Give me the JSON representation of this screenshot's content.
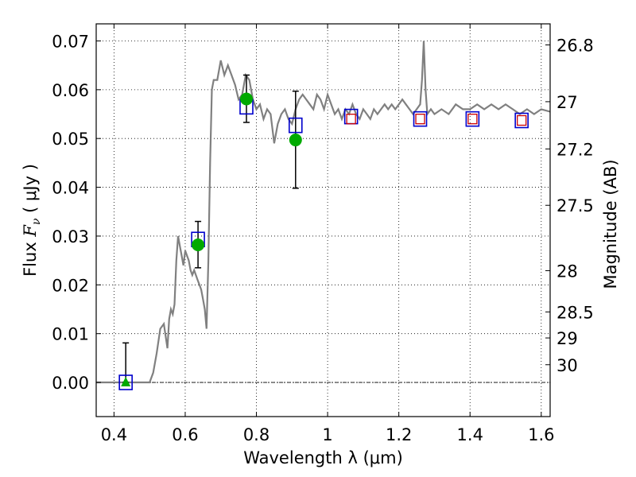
{
  "chart_data": {
    "type": "scatter",
    "xlabel": "Wavelength  λ (μm)",
    "ylabel_prefix": "Flux  ",
    "ylabel_symbol": "F",
    "ylabel_sub": "ν",
    "ylabel_suffix": "  ( μJy )",
    "ylabel_right": "Magnitude (AB)",
    "xlim": [
      0.35,
      1.625
    ],
    "ylim": [
      -0.007,
      0.0735
    ],
    "x_ticks": [
      {
        "value": 0.4,
        "label": "0.4"
      },
      {
        "value": 0.6,
        "label": "0.6"
      },
      {
        "value": 0.8,
        "label": "0.8"
      },
      {
        "value": 1.0,
        "label": "1"
      },
      {
        "value": 1.2,
        "label": "1.2"
      },
      {
        "value": 1.4,
        "label": "1.4"
      },
      {
        "value": 1.6,
        "label": "1.6"
      }
    ],
    "y_ticks": [
      {
        "value": 0.0,
        "label": "0.00"
      },
      {
        "value": 0.01,
        "label": "0.01"
      },
      {
        "value": 0.02,
        "label": "0.02"
      },
      {
        "value": 0.03,
        "label": "0.03"
      },
      {
        "value": 0.04,
        "label": "0.04"
      },
      {
        "value": 0.05,
        "label": "0.05"
      },
      {
        "value": 0.06,
        "label": "0.06"
      },
      {
        "value": 0.07,
        "label": "0.07"
      }
    ],
    "mag_ticks": [
      {
        "mag": 26.8,
        "label": "26.8"
      },
      {
        "mag": 27.0,
        "label": "27"
      },
      {
        "mag": 27.2,
        "label": "27.2"
      },
      {
        "mag": 27.5,
        "label": "27.5"
      },
      {
        "mag": 28.0,
        "label": "28"
      },
      {
        "mag": 28.5,
        "label": "28.5"
      },
      {
        "mag": 29.0,
        "label": "29"
      },
      {
        "mag": 30.0,
        "label": "30"
      }
    ],
    "grid": true,
    "spectrum": {
      "color": "#808080",
      "x": [
        0.35,
        0.5,
        0.51,
        0.52,
        0.53,
        0.54,
        0.55,
        0.555,
        0.56,
        0.565,
        0.57,
        0.575,
        0.58,
        0.585,
        0.59,
        0.595,
        0.6,
        0.605,
        0.61,
        0.615,
        0.62,
        0.625,
        0.63,
        0.635,
        0.64,
        0.645,
        0.65,
        0.655,
        0.66,
        0.665,
        0.67,
        0.675,
        0.68,
        0.69,
        0.7,
        0.71,
        0.72,
        0.73,
        0.74,
        0.75,
        0.76,
        0.77,
        0.78,
        0.79,
        0.8,
        0.81,
        0.82,
        0.83,
        0.84,
        0.85,
        0.86,
        0.87,
        0.88,
        0.89,
        0.9,
        0.91,
        0.92,
        0.93,
        0.94,
        0.95,
        0.96,
        0.97,
        0.98,
        0.99,
        1.0,
        1.01,
        1.02,
        1.03,
        1.04,
        1.05,
        1.06,
        1.07,
        1.08,
        1.09,
        1.1,
        1.11,
        1.12,
        1.13,
        1.14,
        1.15,
        1.16,
        1.17,
        1.18,
        1.19,
        1.2,
        1.21,
        1.22,
        1.23,
        1.24,
        1.25,
        1.26,
        1.265,
        1.27,
        1.275,
        1.28,
        1.29,
        1.3,
        1.32,
        1.34,
        1.36,
        1.38,
        1.4,
        1.42,
        1.44,
        1.46,
        1.48,
        1.5,
        1.52,
        1.54,
        1.56,
        1.58,
        1.6,
        1.625
      ],
      "y": [
        0.0,
        0.0,
        0.002,
        0.006,
        0.011,
        0.012,
        0.007,
        0.013,
        0.015,
        0.014,
        0.016,
        0.025,
        0.03,
        0.028,
        0.026,
        0.024,
        0.027,
        0.026,
        0.025,
        0.023,
        0.022,
        0.023,
        0.022,
        0.021,
        0.02,
        0.019,
        0.017,
        0.015,
        0.011,
        0.025,
        0.045,
        0.06,
        0.062,
        0.062,
        0.066,
        0.063,
        0.065,
        0.063,
        0.061,
        0.058,
        0.059,
        0.063,
        0.062,
        0.058,
        0.056,
        0.057,
        0.054,
        0.056,
        0.055,
        0.049,
        0.053,
        0.055,
        0.056,
        0.054,
        0.053,
        0.056,
        0.058,
        0.059,
        0.058,
        0.057,
        0.056,
        0.059,
        0.058,
        0.056,
        0.059,
        0.057,
        0.055,
        0.056,
        0.054,
        0.056,
        0.055,
        0.057,
        0.055,
        0.054,
        0.056,
        0.055,
        0.054,
        0.056,
        0.055,
        0.056,
        0.057,
        0.056,
        0.057,
        0.056,
        0.057,
        0.058,
        0.057,
        0.056,
        0.055,
        0.056,
        0.057,
        0.062,
        0.07,
        0.06,
        0.055,
        0.056,
        0.055,
        0.056,
        0.055,
        0.057,
        0.056,
        0.056,
        0.057,
        0.056,
        0.057,
        0.056,
        0.057,
        0.056,
        0.055,
        0.056,
        0.055,
        0.056,
        0.0555
      ]
    },
    "open_squares": {
      "color": "#0000cc",
      "points": [
        [
          0.433,
          0.0
        ],
        [
          0.636,
          0.0293
        ],
        [
          0.772,
          0.0565
        ],
        [
          0.91,
          0.0527
        ],
        [
          1.066,
          0.0545
        ],
        [
          1.26,
          0.054
        ],
        [
          1.407,
          0.054
        ],
        [
          1.545,
          0.0537
        ]
      ]
    },
    "red_squares": {
      "color": "#cc0000",
      "points": [
        [
          1.066,
          0.054
        ],
        [
          1.26,
          0.054
        ],
        [
          1.407,
          0.054
        ],
        [
          1.545,
          0.0537
        ]
      ]
    },
    "green_points": {
      "color": "#00aa00",
      "circles": [
        [
          0.636,
          0.0282
        ],
        [
          0.772,
          0.0581
        ],
        [
          0.91,
          0.0497
        ]
      ],
      "triangles": [
        [
          0.433,
          0.0
        ]
      ]
    },
    "error_bars": [
      {
        "x": 0.433,
        "low": 0.0,
        "high": 0.0081
      },
      {
        "x": 0.636,
        "low": 0.0235,
        "high": 0.033
      },
      {
        "x": 0.772,
        "low": 0.0533,
        "high": 0.063
      },
      {
        "x": 0.91,
        "low": 0.0398,
        "high": 0.0597
      }
    ],
    "zero_line": {
      "y": 0.0,
      "style": "dash-dot"
    }
  }
}
